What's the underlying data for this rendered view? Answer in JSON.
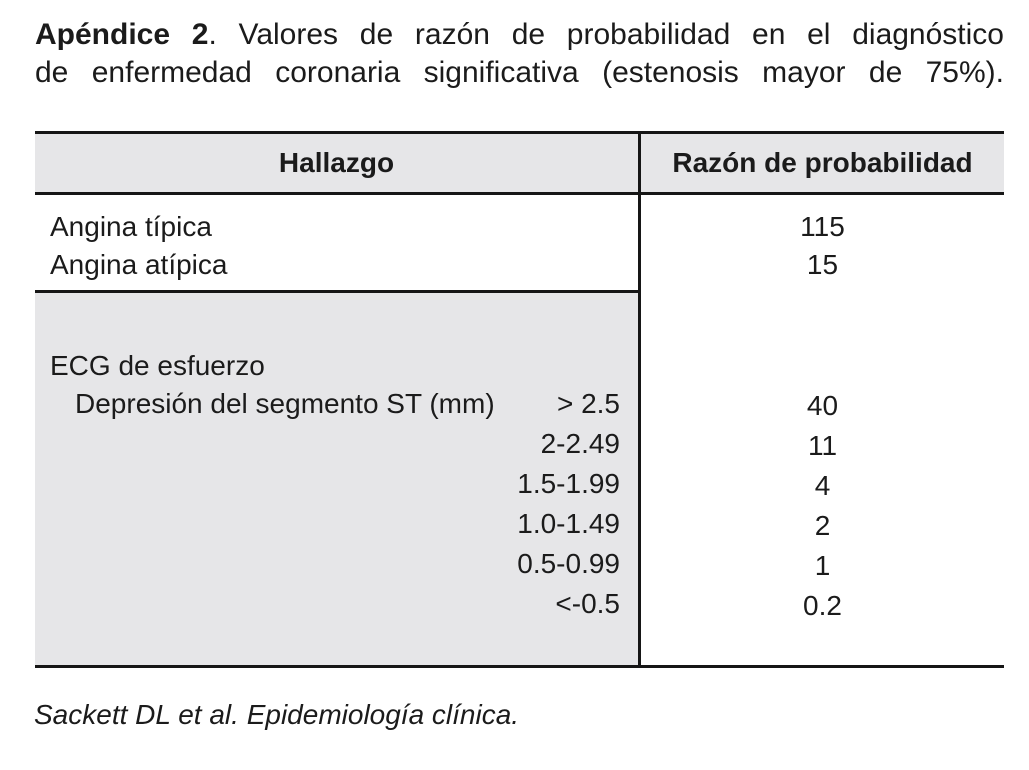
{
  "title": {
    "bold_label": "Apéndice 2",
    "line1_rest": ". Valores de razón de probabilidad en el diagnóstico",
    "line2": "de enfermedad coronaria significativa (estenosis mayor de 75%)."
  },
  "table": {
    "headers": {
      "finding": "Hallazgo",
      "ratio": "Razón de probabilidad"
    },
    "angina_rows": [
      {
        "label": "Angina típica",
        "value": "115"
      },
      {
        "label": "Angina atípica",
        "value": "15"
      }
    ],
    "ecg": {
      "group_label": "ECG de esfuerzo",
      "sub_label": "Depresión del segmento ST (mm)",
      "rows": [
        {
          "range": "> 2.5",
          "value": "40"
        },
        {
          "range": "2-2.49",
          "value": "11"
        },
        {
          "range": "1.5-1.99",
          "value": "4"
        },
        {
          "range": "1.0-1.49",
          "value": "2"
        },
        {
          "range": "0.5-0.99",
          "value": "1"
        },
        {
          "range": "<-0.5",
          "value": "0.2"
        }
      ]
    }
  },
  "footer": {
    "citation": "Sackett DL et al. Epidemiología clínica."
  },
  "colors": {
    "section_bg": "#e6e6e8",
    "rule": "#161616",
    "text": "#1b1b1b"
  }
}
